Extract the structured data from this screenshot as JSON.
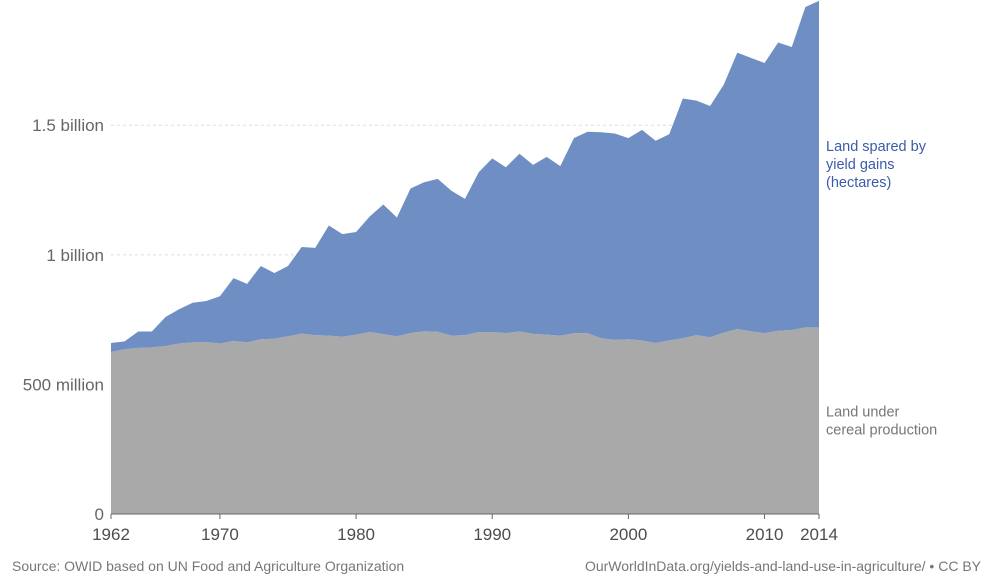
{
  "chart_data": {
    "type": "area",
    "stacked": true,
    "x": [
      1962,
      1963,
      1964,
      1965,
      1966,
      1967,
      1968,
      1969,
      1970,
      1971,
      1972,
      1973,
      1974,
      1975,
      1976,
      1977,
      1978,
      1979,
      1980,
      1981,
      1982,
      1983,
      1984,
      1985,
      1986,
      1987,
      1988,
      1989,
      1990,
      1991,
      1992,
      1993,
      1994,
      1995,
      1996,
      1997,
      1998,
      1999,
      2000,
      2001,
      2002,
      2003,
      2004,
      2005,
      2006,
      2007,
      2008,
      2009,
      2010,
      2011,
      2012,
      2013,
      2014
    ],
    "x_ticks": [
      "1962",
      "1970",
      "1980",
      "1990",
      "2000",
      "2010",
      "2014"
    ],
    "y_ticks": [
      {
        "value": 0,
        "label": "0"
      },
      {
        "value": 500000000,
        "label": "500 million"
      },
      {
        "value": 1000000000,
        "label": "1 billion"
      },
      {
        "value": 1500000000,
        "label": "1.5 billion"
      }
    ],
    "ylim": [
      0,
      1960000000
    ],
    "grid": true,
    "series": [
      {
        "name": "Land under cereal production",
        "label_lines": [
          "Land under",
          "cereal production"
        ],
        "color": "#a9a9a9",
        "label_color": "#777777",
        "values": [
          625000000,
          636000000,
          641000000,
          643000000,
          648000000,
          658000000,
          662000000,
          664000000,
          658000000,
          668000000,
          662000000,
          674000000,
          676000000,
          686000000,
          696000000,
          690000000,
          688000000,
          684000000,
          692000000,
          702000000,
          694000000,
          686000000,
          698000000,
          705000000,
          703000000,
          688000000,
          690000000,
          702000000,
          702000000,
          698000000,
          704000000,
          695000000,
          692000000,
          688000000,
          698000000,
          698000000,
          678000000,
          672000000,
          674000000,
          670000000,
          660000000,
          670000000,
          678000000,
          690000000,
          682000000,
          700000000,
          714000000,
          705000000,
          698000000,
          707000000,
          710000000,
          720000000,
          720000000
        ]
      },
      {
        "name": "Land spared by yield gains (hectares)",
        "label_lines": [
          "Land spared by",
          "yield gains",
          "(hectares)"
        ],
        "color": "#6f8fc4",
        "label_color": "#3c5ba9",
        "values": [
          35000000,
          30000000,
          63000000,
          61000000,
          112000000,
          132000000,
          153000000,
          158000000,
          182000000,
          242000000,
          226000000,
          283000000,
          254000000,
          271000000,
          334000000,
          337000000,
          425000000,
          396000000,
          396000000,
          446000000,
          500000000,
          458000000,
          558000000,
          575000000,
          590000000,
          559000000,
          526000000,
          616000000,
          670000000,
          640000000,
          686000000,
          652000000,
          686000000,
          654000000,
          752000000,
          777000000,
          795000000,
          796000000,
          776000000,
          812000000,
          780000000,
          795000000,
          925000000,
          905000000,
          892000000,
          956000000,
          1066000000,
          1055000000,
          1042000000,
          1112000000,
          1092000000,
          1236000000,
          1260000000
        ]
      }
    ]
  },
  "footer": {
    "source": "Source: OWID based on UN Food and Agriculture Organization",
    "credit": "OurWorldInData.org/yields-and-land-use-in-agriculture/ • CC BY"
  }
}
